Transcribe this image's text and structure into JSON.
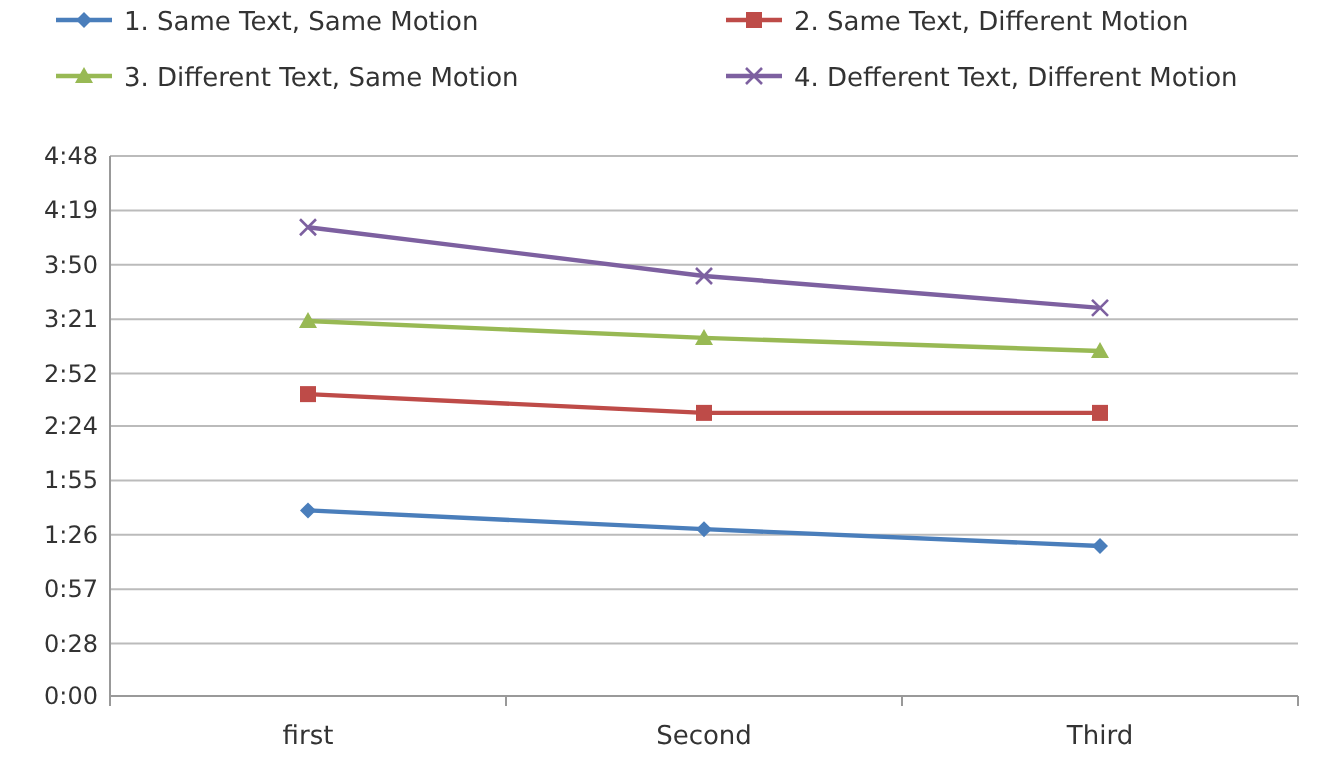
{
  "chart_data": {
    "type": "line",
    "categories": [
      "first",
      "Second",
      "Third"
    ],
    "series": [
      {
        "name": "1. Same Text, Same Motion",
        "color": "#4a7ebb",
        "marker": "diamond",
        "values": [
          99,
          89,
          80
        ]
      },
      {
        "name": "2. Same Text, Different Motion",
        "color": "#be4b48",
        "marker": "square",
        "values": [
          161,
          151,
          151
        ]
      },
      {
        "name": "3. Different Text, Same Motion",
        "color": "#98b954",
        "marker": "triangle",
        "values": [
          200,
          191,
          184
        ]
      },
      {
        "name": "4. Defferent Text, Different Motion",
        "color": "#7d60a0",
        "marker": "cross",
        "values": [
          250,
          224,
          207
        ]
      }
    ],
    "ylim": [
      0,
      288
    ],
    "yticks": [
      {
        "value": 0,
        "label": "0:00"
      },
      {
        "value": 28,
        "label": "0:28"
      },
      {
        "value": 57,
        "label": "0:57"
      },
      {
        "value": 86,
        "label": "1:26"
      },
      {
        "value": 115,
        "label": "1:55"
      },
      {
        "value": 144,
        "label": "2:24"
      },
      {
        "value": 172,
        "label": "2:52"
      },
      {
        "value": 201,
        "label": "3:21"
      },
      {
        "value": 230,
        "label": "3:50"
      },
      {
        "value": 259,
        "label": "4:19"
      },
      {
        "value": 288,
        "label": "4:48"
      }
    ],
    "grid": "y",
    "legend": "top"
  }
}
